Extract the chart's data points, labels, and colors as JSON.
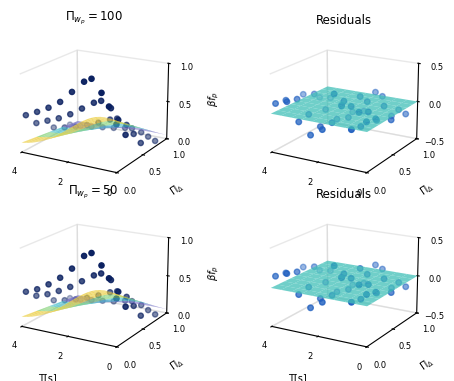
{
  "title_100": "$\\Pi_{w_p}=100$",
  "title_50": "$\\Pi_{w_p}=50$",
  "title_residuals": "Residuals",
  "xlabel": "T[s]",
  "ylabel": "$\\Pi_{\\Delta}$",
  "zlabel_main": "$\\beta f_p$",
  "T_vals": [
    0.2,
    0.5,
    0.8,
    1.2,
    1.5,
    2.0,
    2.5,
    3.0,
    3.5,
    4.0,
    0.2,
    0.5,
    0.8,
    1.2,
    1.5,
    2.0,
    2.5,
    3.0,
    3.5,
    4.0,
    0.2,
    0.5,
    0.8,
    1.2,
    1.5,
    2.0,
    2.5,
    3.0,
    3.5,
    4.0,
    0.2,
    0.5,
    0.8,
    1.2,
    1.5,
    2.0,
    2.5,
    3.0,
    3.5,
    4.0
  ],
  "Pi_vals": [
    0.08,
    0.08,
    0.08,
    0.08,
    0.08,
    0.08,
    0.08,
    0.08,
    0.08,
    0.08,
    0.25,
    0.25,
    0.25,
    0.25,
    0.25,
    0.25,
    0.25,
    0.25,
    0.25,
    0.25,
    0.55,
    0.55,
    0.55,
    0.55,
    0.55,
    0.55,
    0.55,
    0.55,
    0.55,
    0.55,
    0.85,
    0.85,
    0.85,
    0.85,
    0.85,
    0.85,
    0.85,
    0.85,
    0.85,
    0.85
  ],
  "beta_100": [
    0.55,
    0.75,
    0.9,
    1.05,
    1.0,
    0.85,
    0.7,
    0.6,
    0.52,
    0.45,
    0.35,
    0.52,
    0.65,
    0.72,
    0.68,
    0.58,
    0.48,
    0.4,
    0.34,
    0.28,
    0.12,
    0.22,
    0.32,
    0.38,
    0.35,
    0.28,
    0.22,
    0.17,
    0.13,
    0.1,
    0.02,
    0.06,
    0.1,
    0.13,
    0.12,
    0.09,
    0.07,
    0.05,
    0.03,
    0.02
  ],
  "beta_50": [
    0.55,
    0.78,
    0.92,
    1.05,
    1.0,
    0.82,
    0.68,
    0.57,
    0.48,
    0.42,
    0.38,
    0.55,
    0.68,
    0.74,
    0.7,
    0.6,
    0.5,
    0.42,
    0.35,
    0.3,
    0.14,
    0.25,
    0.35,
    0.4,
    0.37,
    0.3,
    0.24,
    0.19,
    0.15,
    0.12,
    0.03,
    0.07,
    0.12,
    0.15,
    0.14,
    0.1,
    0.08,
    0.06,
    0.04,
    0.03
  ],
  "resid_100": [
    0.08,
    0.18,
    -0.05,
    0.22,
    0.35,
    -0.12,
    -0.22,
    -0.08,
    0.15,
    0.1,
    0.05,
    0.12,
    -0.08,
    0.15,
    0.2,
    -0.1,
    -0.18,
    -0.05,
    0.12,
    0.08,
    -0.08,
    0.08,
    -0.12,
    0.1,
    0.15,
    -0.15,
    -0.2,
    -0.1,
    0.08,
    0.05,
    -0.12,
    -0.08,
    -0.18,
    0.06,
    0.1,
    -0.18,
    -0.22,
    -0.15,
    -0.08,
    -0.1
  ],
  "resid_50": [
    0.1,
    0.2,
    -0.03,
    0.25,
    0.38,
    -0.1,
    -0.2,
    -0.06,
    0.18,
    0.12,
    0.06,
    0.14,
    -0.06,
    0.18,
    0.22,
    -0.08,
    -0.15,
    -0.03,
    0.14,
    0.1,
    -0.06,
    0.1,
    -0.1,
    0.12,
    0.18,
    -0.12,
    -0.18,
    -0.08,
    0.1,
    0.07,
    -0.1,
    -0.06,
    -0.15,
    0.08,
    0.12,
    -0.15,
    -0.2,
    -0.12,
    -0.06,
    -0.08
  ],
  "dot_color_main": "#0a2060",
  "dot_color_resid": "#2060c0",
  "surf_color_teal": "#40c0b8",
  "bg_color": "white",
  "dot_size": 14,
  "dot_size_resid": 16,
  "alpha_surf": 0.75,
  "elev": 18,
  "azim_main": -60,
  "azim_resid": -60,
  "colors_rgba": {
    "y": [
      0.92,
      0.8,
      0.22,
      0.75
    ],
    "g": [
      0.5,
      0.82,
      0.45,
      0.75
    ],
    "c": [
      0.28,
      0.75,
      0.8,
      0.75
    ],
    "b": [
      0.48,
      0.45,
      0.8,
      0.75
    ]
  }
}
